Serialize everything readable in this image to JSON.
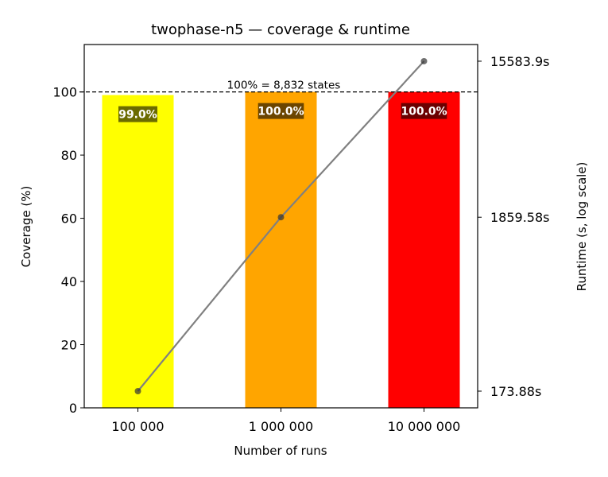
{
  "chart_data": {
    "type": "bar+line",
    "title": "twophase-n5 — coverage & runtime",
    "xlabel": "Number of runs",
    "ylabel": "Coverage (%)",
    "y2label": "Runtime (s, log scale)",
    "categories": [
      "100 000",
      "1 000 000",
      "10 000 000"
    ],
    "coverage": [
      99.0,
      100.0,
      100.0
    ],
    "coverage_labels": [
      "99.0%",
      "100.0%",
      "100.0%"
    ],
    "bar_colors": [
      "#ffff00",
      "#ffa500",
      "#ff0000"
    ],
    "runtime": [
      173.88,
      1859.58,
      15583.9
    ],
    "runtime_tick_labels": [
      "173.88s",
      "1859.58s",
      "15583.9s"
    ],
    "y2scale": "log",
    "ylim": [
      0,
      115
    ],
    "yticks": [
      0,
      20,
      40,
      60,
      80,
      100
    ],
    "y2lim": [
      138.5,
      19560
    ],
    "reference_line": {
      "value": 100,
      "label": "100% = 8,832 states"
    },
    "line_color": "#808080",
    "grid": false
  }
}
